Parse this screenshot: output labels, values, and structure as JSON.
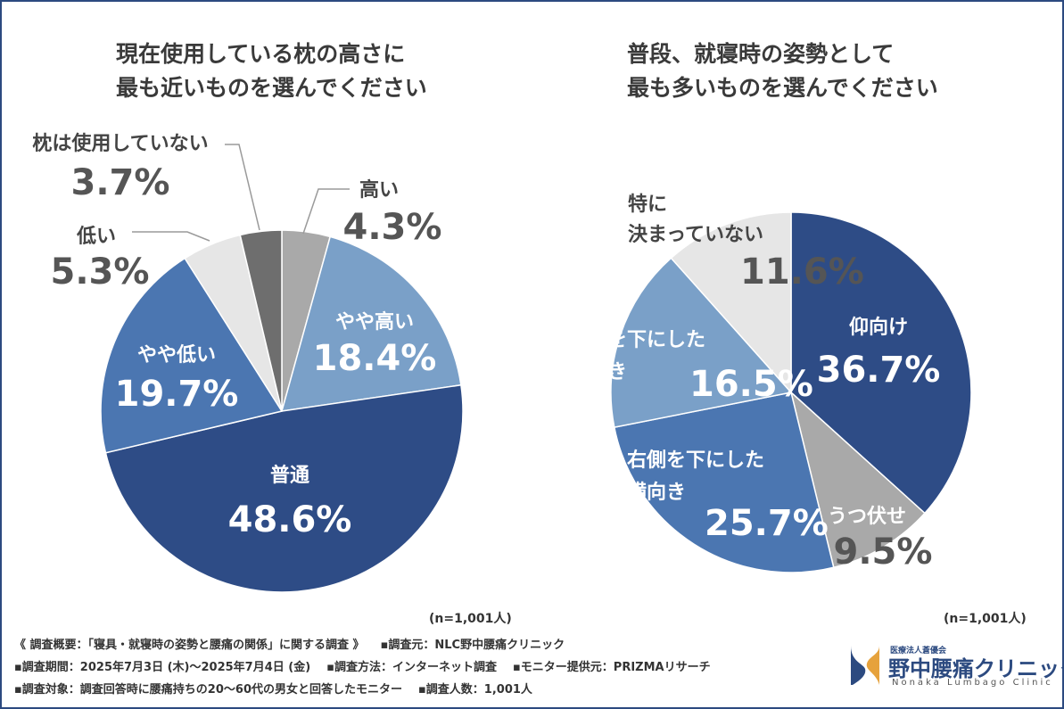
{
  "chart_data": [
    {
      "type": "pie",
      "title": "現在使用している枕の高さに\n最も近いものを選んでください",
      "title_lines": [
        "現在使用している枕の高さに",
        "最も近いものを選んでください"
      ],
      "n_label": "(n=1,001人)",
      "slices": [
        {
          "label": "高い",
          "value": 4.3,
          "value_label": "4.3%",
          "color": "#a9a9a9",
          "label_outside": true
        },
        {
          "label": "やや高い",
          "value": 18.4,
          "value_label": "18.4%",
          "color": "#7aa0c8",
          "label_outside": false
        },
        {
          "label": "普通",
          "value": 48.6,
          "value_label": "48.6%",
          "color": "#2e4c86",
          "label_outside": false
        },
        {
          "label": "やや低い",
          "value": 19.7,
          "value_label": "19.7%",
          "color": "#4b76b1",
          "label_outside": false
        },
        {
          "label": "低い",
          "value": 5.3,
          "value_label": "5.3%",
          "color": "#e6e6e6",
          "label_outside": true
        },
        {
          "label": "枕は使用していない",
          "value": 3.7,
          "value_label": "3.7%",
          "color": "#6e6e6e",
          "label_outside": true
        }
      ]
    },
    {
      "type": "pie",
      "title": "普段、就寝時の姿勢として\n最も多いものを選んでください",
      "title_lines": [
        "普段、就寝時の姿勢として",
        "最も多いものを選んでください"
      ],
      "n_label": "(n=1,001人)",
      "slices": [
        {
          "label": "仰向け",
          "value": 36.7,
          "value_label": "36.7%",
          "color": "#2e4c86",
          "label_outside": false
        },
        {
          "label": "うつ伏せ",
          "value": 9.5,
          "value_label": "9.5%",
          "color": "#a9a9a9",
          "label_outside": false
        },
        {
          "label": "右側を下にした\n横向き",
          "label_lines": [
            "右側を下にした",
            "横向き"
          ],
          "value": 25.7,
          "value_label": "25.7%",
          "color": "#4b76b1",
          "label_outside": false
        },
        {
          "label": "左側を下にした\n横向き",
          "label_lines": [
            "左側を下にした",
            "横向き"
          ],
          "value": 16.5,
          "value_label": "16.5%",
          "color": "#7aa0c8",
          "label_outside": false
        },
        {
          "label": "特に\n決まっていない",
          "label_lines": [
            "特に",
            "決まっていない"
          ],
          "value": 11.6,
          "value_label": "11.6%",
          "color": "#e6e6e6",
          "label_outside": false
        }
      ]
    }
  ],
  "footer": {
    "line1": [
      "《 調査概要：「寝具・就寝時の姿勢と腰痛の関係」に関する調査 》",
      "▪調査元：NLC野中腰痛クリニック"
    ],
    "line2": [
      "▪調査期間：2025年7月3日 (木)～2025年7月4日 (金)",
      "▪調査方法：インターネット調査",
      "▪モニター提供元：PRIZMAリサーチ"
    ],
    "line3": [
      "▪調査対象：調査回答時に腰痛持ちの20～60代の男女と回答したモニター",
      "▪調査人数：1,001人"
    ]
  },
  "logo": {
    "small": "医療法人蒼優会",
    "name": "野中腰痛クリニック",
    "english": "Nonaka Lumbago Clinic"
  },
  "colors": {
    "navy": "#2e4c86",
    "mid_blue": "#4b76b1",
    "light_blue": "#7aa0c8",
    "gray": "#a9a9a9",
    "dark_gray": "#6e6e6e",
    "light_gray": "#e6e6e6",
    "border": "#2c4a80"
  }
}
